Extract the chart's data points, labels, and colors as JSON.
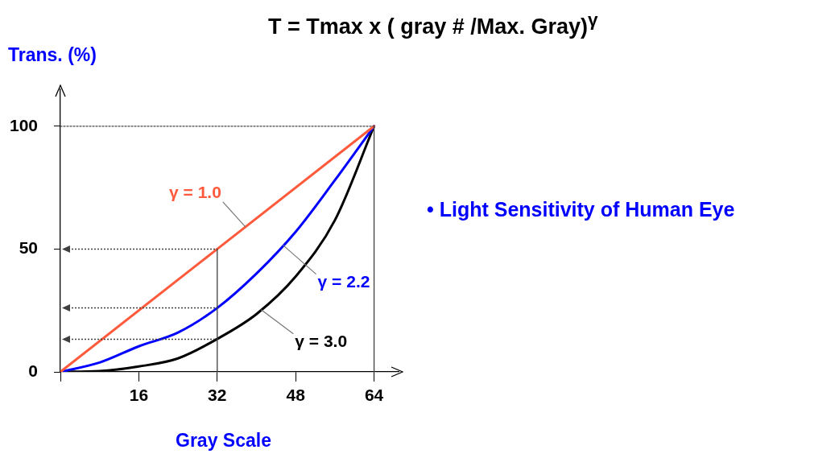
{
  "chart_data": {
    "type": "line",
    "title": "T = Tmax x  ( gray # /Max. Gray)$^{γ}$",
    "xlabel": "Gray Scale",
    "ylabel": "Trans. (%)",
    "annotations": [
      "• Light Sensitivity of Human Eye"
    ],
    "xlim": [
      0,
      69
    ],
    "xticks": [
      {
        "value": 0,
        "label": null
      },
      16,
      32,
      48,
      64
    ],
    "ylim": [
      0,
      115
    ],
    "yticks": [
      0,
      50,
      100
    ],
    "grid": false,
    "marker": "none",
    "series": [
      {
        "color": "#404040",
        "line_style": "dotted",
        "x": [
          0,
          64
        ],
        "values": [
          100,
          100
        ]
      },
      {
        "color": "#404040",
        "line_style": "solid",
        "x": [
          64,
          64
        ],
        "values": [
          0,
          100
        ]
      },
      {
        "color": "#404040",
        "line_style": "solid",
        "x": [
          32,
          32
        ],
        "values": [
          0,
          50
        ]
      },
      {
        "name": "γ = 1.0",
        "color": "#ff5a3c",
        "line_style": "solid",
        "x": [
          0,
          64
        ],
        "values": [
          0,
          100
        ]
      },
      {
        "name": "γ = 2.2",
        "color": "#0000ff",
        "line_style": "solid",
        "x": [
          0,
          8,
          16,
          24,
          32,
          40,
          48,
          56,
          64
        ],
        "values": [
          0,
          3.8,
          10.4,
          16,
          26,
          40,
          57,
          78,
          100
        ]
      },
      {
        "name": "γ = 3.0",
        "color": "#000000",
        "line_style": "solid",
        "x": [
          0,
          8,
          16,
          24,
          32,
          40,
          48,
          56,
          64
        ],
        "values": [
          0,
          0.3,
          2.2,
          5.5,
          13.4,
          23.5,
          38.8,
          61.7,
          100
        ]
      }
    ]
  }
}
